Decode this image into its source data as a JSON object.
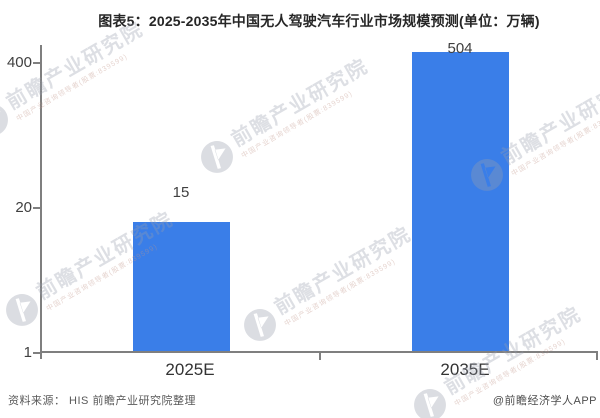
{
  "title": "图表5：2025-2035年中国无人驾驶汽车行业市场规模预测(单位：万辆)",
  "chart_data": {
    "type": "bar",
    "title": "图表5：2025-2035年中国无人驾驶汽车行业市场规模预测(单位：万辆)",
    "unit": "万辆",
    "categories": [
      "2025E",
      "2035E"
    ],
    "values": [
      15,
      504
    ],
    "series": [
      {
        "name": "市场规模",
        "values": [
          15,
          504
        ]
      }
    ],
    "xlabel": "",
    "ylabel": "",
    "yaxis": {
      "scale": "log",
      "tick_values": [
        1,
        20,
        400
      ],
      "tick_labels": [
        "1",
        "20",
        "400"
      ]
    },
    "grid": "off",
    "legend": "none",
    "bar_color": "#3A7EE8"
  },
  "footer": {
    "source": "资料来源： HIS 前瞻产业研究院整理",
    "credit": "@前瞻经济学人APP"
  },
  "watermark": {
    "brand": "前瞻产业研究院",
    "tagline": "中国产业咨询领导者(股票:839599)"
  },
  "colors": {
    "bar": "#3A7EE8",
    "axis": "#7f7f7f",
    "tick_text": "#404040",
    "title_text": "#262626",
    "footer_text": "#595959",
    "watermark": "#9aa2b0"
  }
}
